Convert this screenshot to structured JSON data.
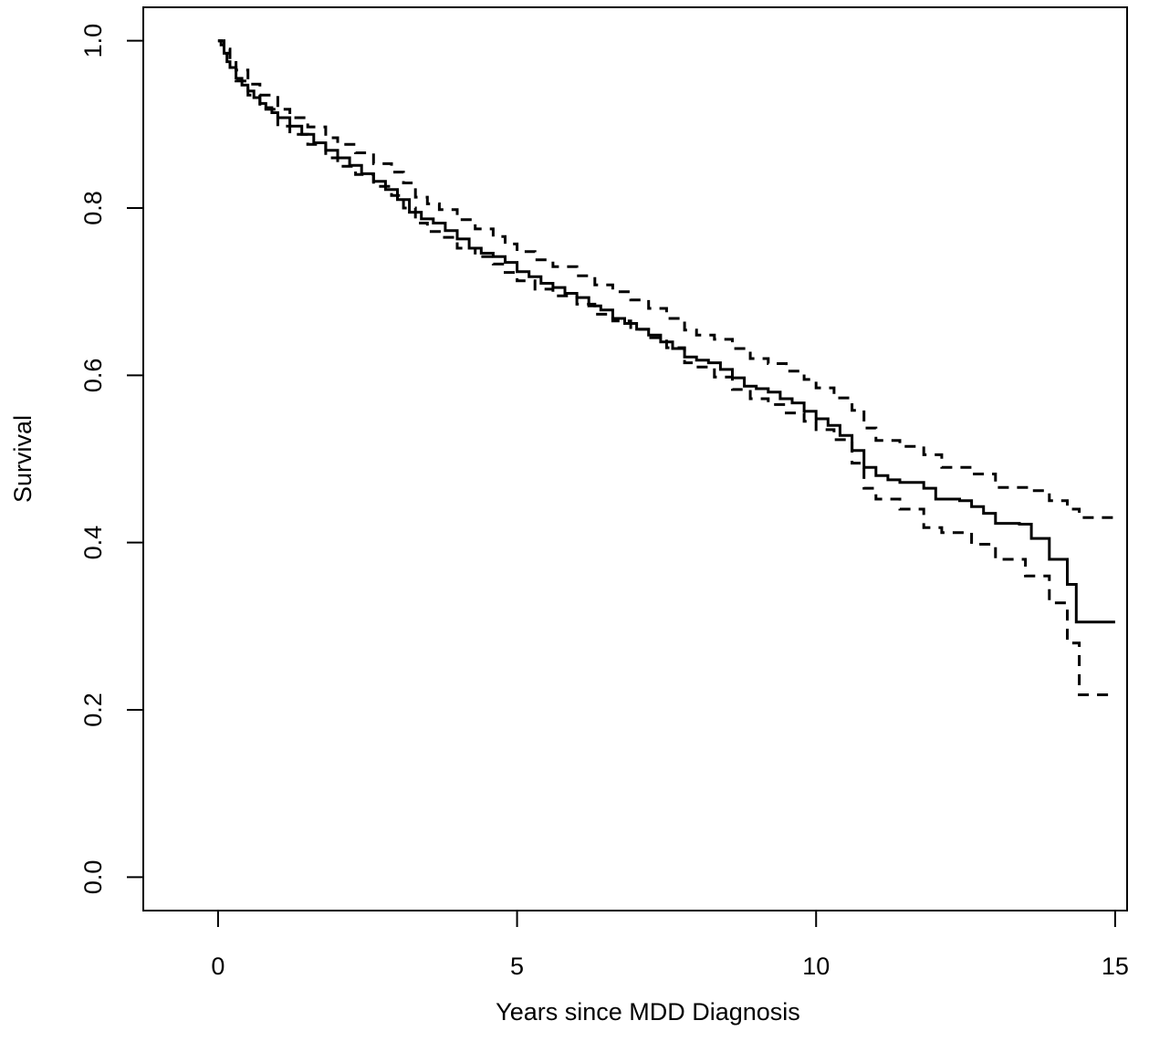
{
  "chart_data": {
    "type": "line",
    "title": "",
    "xlabel": "Years since MDD Diagnosis",
    "ylabel": "Survival",
    "xlim": [
      -1.25,
      15.2
    ],
    "ylim": [
      -0.04,
      1.04
    ],
    "xticks": [
      0,
      5,
      10,
      15
    ],
    "yticks": [
      0.0,
      0.2,
      0.4,
      0.6,
      0.8,
      1.0
    ],
    "xtick_labels": [
      "0",
      "5",
      "10",
      "15"
    ],
    "ytick_labels": [
      "0.0",
      "0.2",
      "0.4",
      "0.6",
      "0.8",
      "1.0"
    ],
    "grid": false,
    "legend": "none",
    "step": true,
    "series": [
      {
        "role": "estimate",
        "line_style": "solid",
        "color": "#000000",
        "points": [
          [
            0,
            1.0
          ],
          [
            0.05,
            0.995
          ],
          [
            0.1,
            0.985
          ],
          [
            0.15,
            0.975
          ],
          [
            0.2,
            0.968
          ],
          [
            0.3,
            0.955
          ],
          [
            0.4,
            0.947
          ],
          [
            0.5,
            0.94
          ],
          [
            0.6,
            0.932
          ],
          [
            0.7,
            0.925
          ],
          [
            0.8,
            0.92
          ],
          [
            0.9,
            0.914
          ],
          [
            1.0,
            0.908
          ],
          [
            1.2,
            0.898
          ],
          [
            1.4,
            0.888
          ],
          [
            1.6,
            0.878
          ],
          [
            1.8,
            0.869
          ],
          [
            2.0,
            0.86
          ],
          [
            2.2,
            0.851
          ],
          [
            2.4,
            0.841
          ],
          [
            2.6,
            0.832
          ],
          [
            2.8,
            0.822
          ],
          [
            3.0,
            0.81
          ],
          [
            3.2,
            0.795
          ],
          [
            3.4,
            0.787
          ],
          [
            3.6,
            0.782
          ],
          [
            3.8,
            0.773
          ],
          [
            4.0,
            0.763
          ],
          [
            4.2,
            0.752
          ],
          [
            4.4,
            0.746
          ],
          [
            4.6,
            0.742
          ],
          [
            4.8,
            0.735
          ],
          [
            5.0,
            0.724
          ],
          [
            5.2,
            0.718
          ],
          [
            5.4,
            0.71
          ],
          [
            5.6,
            0.705
          ],
          [
            5.8,
            0.698
          ],
          [
            6.0,
            0.693
          ],
          [
            6.2,
            0.683
          ],
          [
            6.4,
            0.678
          ],
          [
            6.6,
            0.668
          ],
          [
            6.8,
            0.662
          ],
          [
            7.0,
            0.655
          ],
          [
            7.2,
            0.648
          ],
          [
            7.4,
            0.64
          ],
          [
            7.6,
            0.632
          ],
          [
            7.8,
            0.622
          ],
          [
            8.0,
            0.618
          ],
          [
            8.2,
            0.615
          ],
          [
            8.4,
            0.607
          ],
          [
            8.6,
            0.597
          ],
          [
            8.8,
            0.587
          ],
          [
            9.0,
            0.584
          ],
          [
            9.2,
            0.58
          ],
          [
            9.4,
            0.572
          ],
          [
            9.6,
            0.567
          ],
          [
            9.8,
            0.557
          ],
          [
            10.0,
            0.548
          ],
          [
            10.2,
            0.54
          ],
          [
            10.4,
            0.528
          ],
          [
            10.6,
            0.51
          ],
          [
            10.8,
            0.49
          ],
          [
            11.0,
            0.48
          ],
          [
            11.2,
            0.475
          ],
          [
            11.4,
            0.472
          ],
          [
            11.8,
            0.465
          ],
          [
            12.0,
            0.452
          ],
          [
            12.4,
            0.45
          ],
          [
            12.6,
            0.443
          ],
          [
            12.8,
            0.435
          ],
          [
            13.0,
            0.423
          ],
          [
            13.4,
            0.422
          ],
          [
            13.6,
            0.405
          ],
          [
            13.9,
            0.38
          ],
          [
            14.2,
            0.35
          ],
          [
            14.35,
            0.305
          ],
          [
            15.0,
            0.305
          ]
        ]
      },
      {
        "role": "upper-ci",
        "line_style": "dashed",
        "color": "#000000",
        "points": [
          [
            0,
            1.0
          ],
          [
            0.1,
            0.99
          ],
          [
            0.2,
            0.978
          ],
          [
            0.3,
            0.965
          ],
          [
            0.5,
            0.948
          ],
          [
            0.7,
            0.935
          ],
          [
            1.0,
            0.918
          ],
          [
            1.2,
            0.908
          ],
          [
            1.5,
            0.897
          ],
          [
            1.8,
            0.884
          ],
          [
            2.0,
            0.876
          ],
          [
            2.3,
            0.866
          ],
          [
            2.6,
            0.853
          ],
          [
            2.9,
            0.843
          ],
          [
            3.1,
            0.83
          ],
          [
            3.3,
            0.813
          ],
          [
            3.5,
            0.805
          ],
          [
            3.7,
            0.798
          ],
          [
            4.0,
            0.786
          ],
          [
            4.3,
            0.775
          ],
          [
            4.6,
            0.766
          ],
          [
            4.8,
            0.757
          ],
          [
            5.0,
            0.748
          ],
          [
            5.3,
            0.738
          ],
          [
            5.6,
            0.73
          ],
          [
            6.0,
            0.719
          ],
          [
            6.3,
            0.708
          ],
          [
            6.6,
            0.7
          ],
          [
            6.9,
            0.69
          ],
          [
            7.2,
            0.68
          ],
          [
            7.5,
            0.668
          ],
          [
            7.8,
            0.654
          ],
          [
            8.0,
            0.648
          ],
          [
            8.3,
            0.643
          ],
          [
            8.6,
            0.632
          ],
          [
            8.9,
            0.62
          ],
          [
            9.2,
            0.614
          ],
          [
            9.5,
            0.605
          ],
          [
            9.8,
            0.595
          ],
          [
            10.0,
            0.585
          ],
          [
            10.3,
            0.573
          ],
          [
            10.6,
            0.558
          ],
          [
            10.8,
            0.537
          ],
          [
            11.0,
            0.522
          ],
          [
            11.4,
            0.515
          ],
          [
            11.8,
            0.505
          ],
          [
            12.1,
            0.49
          ],
          [
            12.6,
            0.482
          ],
          [
            13.0,
            0.466
          ],
          [
            13.6,
            0.462
          ],
          [
            13.9,
            0.45
          ],
          [
            14.2,
            0.44
          ],
          [
            14.4,
            0.43
          ],
          [
            15.0,
            0.43
          ]
        ]
      },
      {
        "role": "lower-ci",
        "line_style": "dashed",
        "color": "#000000",
        "points": [
          [
            0,
            1.0
          ],
          [
            0.1,
            0.985
          ],
          [
            0.2,
            0.968
          ],
          [
            0.3,
            0.952
          ],
          [
            0.5,
            0.935
          ],
          [
            0.7,
            0.918
          ],
          [
            1.0,
            0.898
          ],
          [
            1.2,
            0.888
          ],
          [
            1.5,
            0.876
          ],
          [
            1.8,
            0.86
          ],
          [
            2.0,
            0.85
          ],
          [
            2.3,
            0.84
          ],
          [
            2.6,
            0.826
          ],
          [
            2.9,
            0.815
          ],
          [
            3.1,
            0.8
          ],
          [
            3.3,
            0.782
          ],
          [
            3.5,
            0.772
          ],
          [
            3.7,
            0.765
          ],
          [
            4.0,
            0.752
          ],
          [
            4.3,
            0.742
          ],
          [
            4.6,
            0.733
          ],
          [
            4.8,
            0.723
          ],
          [
            5.0,
            0.713
          ],
          [
            5.3,
            0.703
          ],
          [
            5.6,
            0.695
          ],
          [
            6.0,
            0.685
          ],
          [
            6.3,
            0.673
          ],
          [
            6.6,
            0.665
          ],
          [
            6.9,
            0.655
          ],
          [
            7.2,
            0.645
          ],
          [
            7.5,
            0.633
          ],
          [
            7.8,
            0.615
          ],
          [
            8.0,
            0.61
          ],
          [
            8.3,
            0.598
          ],
          [
            8.6,
            0.583
          ],
          [
            8.9,
            0.572
          ],
          [
            9.2,
            0.565
          ],
          [
            9.5,
            0.555
          ],
          [
            9.8,
            0.545
          ],
          [
            10.0,
            0.535
          ],
          [
            10.3,
            0.523
          ],
          [
            10.6,
            0.495
          ],
          [
            10.8,
            0.465
          ],
          [
            11.0,
            0.452
          ],
          [
            11.4,
            0.44
          ],
          [
            11.8,
            0.418
          ],
          [
            12.1,
            0.412
          ],
          [
            12.6,
            0.398
          ],
          [
            13.0,
            0.38
          ],
          [
            13.5,
            0.36
          ],
          [
            13.9,
            0.328
          ],
          [
            14.2,
            0.28
          ],
          [
            14.4,
            0.218
          ],
          [
            15.0,
            0.218
          ]
        ]
      }
    ]
  }
}
